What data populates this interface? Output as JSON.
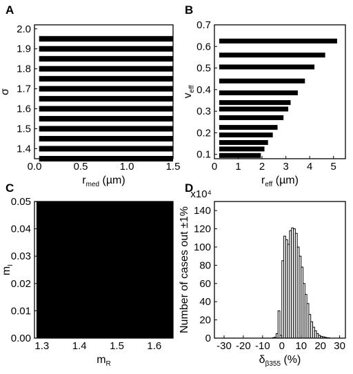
{
  "chart_data": [
    {
      "panel_label": "A",
      "type": "bar",
      "orientation": "horizontal",
      "xlabel": {
        "main": "r",
        "sub": "med",
        "unit": " (µm)"
      },
      "ylabel": "σ",
      "xlim": [
        0,
        1.5
      ],
      "ylim": [
        1.35,
        2.02
      ],
      "xticks": [
        "0.0",
        "0.5",
        "1.0",
        "1.5"
      ],
      "yticks": [
        "1.4",
        "1.5",
        "1.6",
        "1.7",
        "1.8",
        "1.9",
        "2.0"
      ],
      "categories": [
        1.35,
        1.4,
        1.45,
        1.5,
        1.55,
        1.6,
        1.65,
        1.7,
        1.75,
        1.8,
        1.85,
        1.9,
        1.95
      ],
      "bars": [
        {
          "y": 1.35,
          "start": 0.05,
          "end": 1.5
        },
        {
          "y": 1.4,
          "start": 0.05,
          "end": 1.5
        },
        {
          "y": 1.45,
          "start": 0.05,
          "end": 1.5
        },
        {
          "y": 1.5,
          "start": 0.05,
          "end": 1.5
        },
        {
          "y": 1.55,
          "start": 0.05,
          "end": 1.5
        },
        {
          "y": 1.6,
          "start": 0.05,
          "end": 1.5
        },
        {
          "y": 1.65,
          "start": 0.05,
          "end": 1.5
        },
        {
          "y": 1.7,
          "start": 0.05,
          "end": 1.5
        },
        {
          "y": 1.75,
          "start": 0.05,
          "end": 1.5
        },
        {
          "y": 1.8,
          "start": 0.05,
          "end": 1.5
        },
        {
          "y": 1.85,
          "start": 0.05,
          "end": 1.5
        },
        {
          "y": 1.9,
          "start": 0.05,
          "end": 1.5
        },
        {
          "y": 1.95,
          "start": 0.05,
          "end": 1.5
        }
      ]
    },
    {
      "panel_label": "B",
      "type": "bar",
      "orientation": "horizontal",
      "xlabel": {
        "main": "r",
        "sub": "eff",
        "unit": " (µm)"
      },
      "ylabel": {
        "main": "v",
        "sub": "eff"
      },
      "xlim": [
        0,
        5.5
      ],
      "ylim": [
        0.08,
        0.7
      ],
      "xticks": [
        "0",
        "1",
        "2",
        "3",
        "4",
        "5"
      ],
      "yticks": [
        "0.1",
        "0.2",
        "0.3",
        "0.4",
        "0.5",
        "0.6",
        "0.7"
      ],
      "bars": [
        {
          "y": 0.095,
          "start": 0.2,
          "end": 1.95
        },
        {
          "y": 0.125,
          "start": 0.2,
          "end": 2.1
        },
        {
          "y": 0.155,
          "start": 0.2,
          "end": 2.25
        },
        {
          "y": 0.19,
          "start": 0.2,
          "end": 2.45
        },
        {
          "y": 0.225,
          "start": 0.2,
          "end": 2.65
        },
        {
          "y": 0.27,
          "start": 0.2,
          "end": 2.9
        },
        {
          "y": 0.31,
          "start": 0.2,
          "end": 3.1
        },
        {
          "y": 0.34,
          "start": 0.2,
          "end": 3.2
        },
        {
          "y": 0.385,
          "start": 0.2,
          "end": 3.5
        },
        {
          "y": 0.44,
          "start": 0.2,
          "end": 3.8
        },
        {
          "y": 0.505,
          "start": 0.2,
          "end": 4.2
        },
        {
          "y": 0.56,
          "start": 0.2,
          "end": 4.65
        },
        {
          "y": 0.625,
          "start": 0.2,
          "end": 5.15
        }
      ]
    },
    {
      "panel_label": "C",
      "type": "bar",
      "xlabel": {
        "main": "m",
        "sub": "R",
        "unit": ""
      },
      "ylabel": {
        "main": "m",
        "sub": "I"
      },
      "xlim": [
        1.28,
        1.65
      ],
      "ylim": [
        0,
        0.05
      ],
      "xticks": [
        "1.3",
        "1.4",
        "1.5",
        "1.6"
      ],
      "yticks": [
        "0.00",
        "0.01",
        "0.02",
        "0.03",
        "0.04",
        "0.05"
      ],
      "categories": [
        1.295,
        1.31,
        1.325,
        1.34,
        1.355,
        1.37,
        1.385,
        1.4,
        1.415,
        1.43,
        1.445,
        1.46,
        1.475,
        1.49,
        1.505,
        1.52,
        1.535,
        1.55,
        1.565,
        1.58,
        1.595,
        1.61,
        1.625,
        1.64
      ],
      "values": [
        0.05,
        0.05,
        0.05,
        0.05,
        0.05,
        0.05,
        0.05,
        0.05,
        0.05,
        0.05,
        0.05,
        0.05,
        0.05,
        0.05,
        0.05,
        0.05,
        0.05,
        0.05,
        0.05,
        0.05,
        0.05,
        0.05,
        0.05,
        0.05
      ]
    },
    {
      "panel_label": "D",
      "type": "bar",
      "xlabel": {
        "main": "δ",
        "sub": "β355",
        "unit": " (%)"
      },
      "ylabel": "Number of cases out ±1%",
      "multiplier": "x10⁴",
      "xlim": [
        -35,
        33
      ],
      "ylim": [
        0,
        150
      ],
      "xticks": [
        "-30",
        "-20",
        "-10",
        "0",
        "10",
        "20",
        "30"
      ],
      "yticks": [
        "0",
        "20",
        "40",
        "60",
        "80",
        "100",
        "120",
        "140"
      ],
      "bin_width": 1,
      "bin_left_edges": [
        -5,
        -4,
        -3,
        -2,
        -1,
        0,
        1,
        2,
        3,
        4,
        5,
        6,
        7,
        8,
        9,
        10,
        11,
        12,
        13,
        14,
        15,
        16,
        17,
        18,
        19,
        20,
        21,
        22,
        23,
        24
      ],
      "values": [
        0.5,
        1,
        5,
        30,
        3,
        85,
        112,
        108,
        103,
        118,
        121,
        120,
        115,
        100,
        90,
        78,
        60,
        48,
        38,
        26,
        18,
        12,
        8,
        5,
        3,
        2,
        1.5,
        1,
        0.5,
        0.3
      ]
    }
  ]
}
